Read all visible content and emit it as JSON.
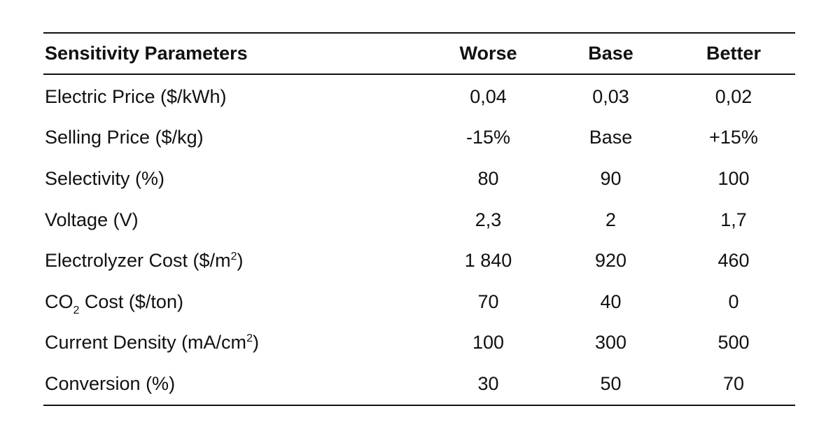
{
  "table": {
    "headers": [
      "Sensitivity Parameters",
      "Worse",
      "Base",
      "Better"
    ],
    "rows": [
      {
        "pre": "Electric Price ($/kWh)",
        "sub": "",
        "sup": "",
        "post": "",
        "worse": "0,04",
        "base": "0,03",
        "better": "0,02"
      },
      {
        "pre": "Selling Price ($/kg)",
        "sub": "",
        "sup": "",
        "post": "",
        "worse": "-15%",
        "base": "Base",
        "better": "+15%"
      },
      {
        "pre": "Selectivity (%)",
        "sub": "",
        "sup": "",
        "post": "",
        "worse": "80",
        "base": "90",
        "better": "100"
      },
      {
        "pre": "Voltage (V)",
        "sub": "",
        "sup": "",
        "post": "",
        "worse": "2,3",
        "base": "2",
        "better": "1,7"
      },
      {
        "pre": "Electrolyzer Cost ($/m",
        "sub": "",
        "sup": "2",
        "post": ")",
        "worse": "1 840",
        "base": "920",
        "better": "460"
      },
      {
        "pre": "CO",
        "sub": "2",
        "sup": "",
        "post": " Cost ($/ton)",
        "worse": "70",
        "base": "40",
        "better": "0"
      },
      {
        "pre": "Current Density (mA/cm",
        "sub": "",
        "sup": "2",
        "post": ")",
        "worse": "100",
        "base": "300",
        "better": "500"
      },
      {
        "pre": "Conversion (%)",
        "sub": "",
        "sup": "",
        "post": "",
        "worse": "30",
        "base": "50",
        "better": "70"
      }
    ]
  }
}
